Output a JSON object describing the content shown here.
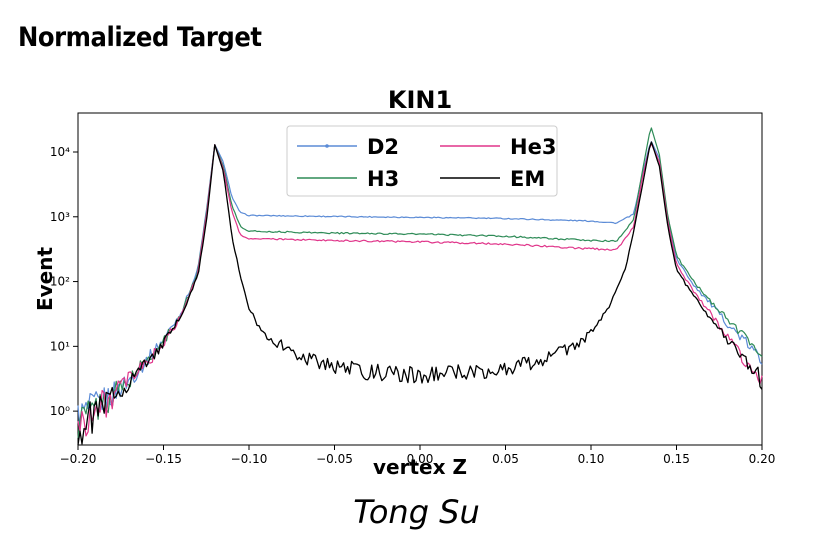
{
  "slide": {
    "title": "Normalized Target",
    "author": "Tong Su"
  },
  "chart_data": {
    "type": "line",
    "title": "KIN1",
    "xlabel": "vertex Z",
    "ylabel": "Event",
    "xlim": [
      -0.2,
      0.2
    ],
    "yscale": "log",
    "ylim": [
      0.3,
      40000
    ],
    "xticks": [
      "−0.20",
      "−0.15",
      "−0.10",
      "−0.05",
      "0.00",
      "0.05",
      "0.10",
      "0.15",
      "0.20"
    ],
    "xtick_values": [
      -0.2,
      -0.15,
      -0.1,
      -0.05,
      0.0,
      0.05,
      0.1,
      0.15,
      0.2
    ],
    "yticks": [
      "10⁰",
      "10¹",
      "10²",
      "10³",
      "10⁴"
    ],
    "ytick_values": [
      1,
      10,
      100,
      1000,
      10000
    ],
    "grid": false,
    "legend_position": "top-center",
    "series": [
      {
        "name": "D2",
        "color": "#5b8bd6",
        "marker": "dot",
        "points": [
          [
            -0.2,
            0.8
          ],
          [
            -0.19,
            1.2
          ],
          [
            -0.18,
            1.8
          ],
          [
            -0.17,
            3
          ],
          [
            -0.16,
            6
          ],
          [
            -0.15,
            13
          ],
          [
            -0.14,
            32
          ],
          [
            -0.13,
            150
          ],
          [
            -0.125,
            1200
          ],
          [
            -0.12,
            13000
          ],
          [
            -0.115,
            7000
          ],
          [
            -0.11,
            2000
          ],
          [
            -0.105,
            1150
          ],
          [
            -0.1,
            1050
          ],
          [
            -0.05,
            1010
          ],
          [
            0.0,
            980
          ],
          [
            0.05,
            940
          ],
          [
            0.1,
            860
          ],
          [
            0.115,
            800
          ],
          [
            0.125,
            1100
          ],
          [
            0.13,
            4500
          ],
          [
            0.135,
            15000
          ],
          [
            0.14,
            8000
          ],
          [
            0.145,
            900
          ],
          [
            0.15,
            220
          ],
          [
            0.16,
            90
          ],
          [
            0.17,
            45
          ],
          [
            0.18,
            22
          ],
          [
            0.19,
            12
          ],
          [
            0.2,
            6
          ]
        ]
      },
      {
        "name": "H3",
        "color": "#2e8b57",
        "marker": "none",
        "points": [
          [
            -0.2,
            0.7
          ],
          [
            -0.19,
            1.1
          ],
          [
            -0.18,
            1.7
          ],
          [
            -0.17,
            3
          ],
          [
            -0.16,
            6
          ],
          [
            -0.15,
            12
          ],
          [
            -0.14,
            30
          ],
          [
            -0.13,
            140
          ],
          [
            -0.125,
            1100
          ],
          [
            -0.12,
            13000
          ],
          [
            -0.115,
            6000
          ],
          [
            -0.11,
            1500
          ],
          [
            -0.105,
            700
          ],
          [
            -0.1,
            600
          ],
          [
            -0.05,
            560
          ],
          [
            0.0,
            540
          ],
          [
            0.05,
            500
          ],
          [
            0.1,
            430
          ],
          [
            0.115,
            420
          ],
          [
            0.125,
            900
          ],
          [
            0.13,
            5000
          ],
          [
            0.135,
            25000
          ],
          [
            0.14,
            9000
          ],
          [
            0.145,
            1000
          ],
          [
            0.15,
            250
          ],
          [
            0.16,
            100
          ],
          [
            0.17,
            50
          ],
          [
            0.18,
            26
          ],
          [
            0.19,
            14
          ],
          [
            0.2,
            8
          ]
        ]
      },
      {
        "name": "He3",
        "color": "#e0358a",
        "marker": "none",
        "points": [
          [
            -0.2,
            0.6
          ],
          [
            -0.19,
            1.0
          ],
          [
            -0.18,
            1.6
          ],
          [
            -0.17,
            3
          ],
          [
            -0.16,
            5.5
          ],
          [
            -0.15,
            11
          ],
          [
            -0.14,
            28
          ],
          [
            -0.13,
            130
          ],
          [
            -0.125,
            1000
          ],
          [
            -0.12,
            13000
          ],
          [
            -0.115,
            5500
          ],
          [
            -0.11,
            1200
          ],
          [
            -0.105,
            520
          ],
          [
            -0.1,
            460
          ],
          [
            -0.05,
            430
          ],
          [
            0.0,
            410
          ],
          [
            0.05,
            380
          ],
          [
            0.1,
            320
          ],
          [
            0.115,
            310
          ],
          [
            0.125,
            700
          ],
          [
            0.13,
            4000
          ],
          [
            0.135,
            14000
          ],
          [
            0.14,
            7000
          ],
          [
            0.145,
            800
          ],
          [
            0.15,
            180
          ],
          [
            0.16,
            70
          ],
          [
            0.17,
            32
          ],
          [
            0.18,
            14
          ],
          [
            0.19,
            6
          ],
          [
            0.2,
            3
          ]
        ]
      },
      {
        "name": "EM",
        "color": "#000000",
        "marker": "none",
        "points": [
          [
            -0.2,
            0.5
          ],
          [
            -0.19,
            0.9
          ],
          [
            -0.18,
            1.6
          ],
          [
            -0.17,
            3
          ],
          [
            -0.16,
            5.5
          ],
          [
            -0.15,
            11
          ],
          [
            -0.14,
            28
          ],
          [
            -0.13,
            120
          ],
          [
            -0.125,
            800
          ],
          [
            -0.12,
            13000
          ],
          [
            -0.115,
            5000
          ],
          [
            -0.11,
            500
          ],
          [
            -0.105,
            120
          ],
          [
            -0.1,
            35
          ],
          [
            -0.09,
            15
          ],
          [
            -0.08,
            10
          ],
          [
            -0.07,
            7
          ],
          [
            -0.05,
            5
          ],
          [
            -0.03,
            4
          ],
          [
            0.0,
            3.5
          ],
          [
            0.03,
            4
          ],
          [
            0.05,
            4.5
          ],
          [
            0.07,
            6
          ],
          [
            0.09,
            10
          ],
          [
            0.1,
            16
          ],
          [
            0.11,
            40
          ],
          [
            0.12,
            150
          ],
          [
            0.125,
            600
          ],
          [
            0.13,
            3000
          ],
          [
            0.135,
            15000
          ],
          [
            0.14,
            6000
          ],
          [
            0.145,
            700
          ],
          [
            0.15,
            150
          ],
          [
            0.16,
            60
          ],
          [
            0.17,
            28
          ],
          [
            0.18,
            12
          ],
          [
            0.19,
            6
          ],
          [
            0.2,
            3
          ]
        ]
      }
    ]
  }
}
